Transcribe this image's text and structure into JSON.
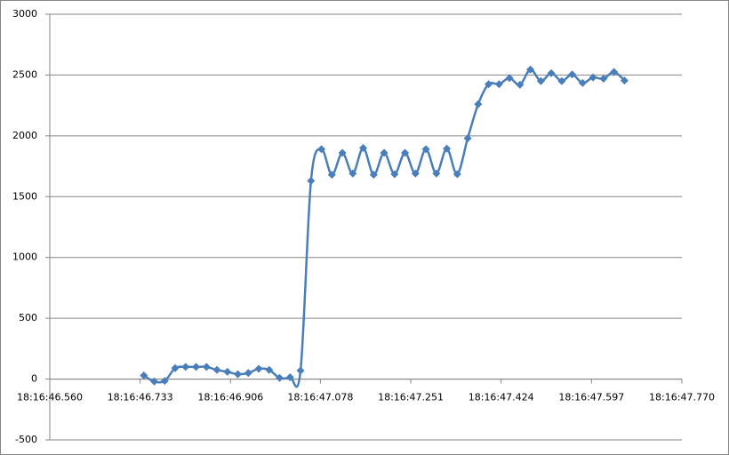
{
  "chart_data": {
    "type": "line",
    "smooth": true,
    "marker": "diamond",
    "x": [
      65806.74,
      65806.76,
      65806.78,
      65806.8,
      65806.82,
      65806.84,
      65806.86,
      65806.88,
      65806.9,
      65806.92,
      65806.94,
      65806.96,
      65806.98,
      65807.0,
      65807.02,
      65807.04,
      65807.06,
      65807.08,
      65807.1,
      65807.12,
      65807.14,
      65807.16,
      65807.18,
      65807.2,
      65807.22,
      65807.24,
      65807.26,
      65807.28,
      65807.3,
      65807.32,
      65807.34,
      65807.36,
      65807.38,
      65807.4,
      65807.42,
      65807.44,
      65807.46,
      65807.48,
      65807.5,
      65807.52,
      65807.54,
      65807.56,
      65807.58,
      65807.6,
      65807.62,
      65807.64,
      65807.66
    ],
    "series": [
      {
        "color": "#4a7ebb",
        "values": [
          30,
          -20,
          -15,
          90,
          100,
          100,
          100,
          75,
          60,
          40,
          50,
          85,
          75,
          10,
          15,
          70,
          1630,
          1890,
          1680,
          1860,
          1690,
          1900,
          1680,
          1860,
          1685,
          1860,
          1690,
          1890,
          1690,
          1895,
          1685,
          1980,
          2260,
          2425,
          2425,
          2475,
          2420,
          2545,
          2450,
          2515,
          2450,
          2505,
          2435,
          2480,
          2470,
          2525,
          2455
        ]
      }
    ],
    "xlim": [
      65806.56,
      65807.77
    ],
    "xticks": [
      {
        "value": 65806.56,
        "label": "18:16:46.560"
      },
      {
        "value": 65806.733,
        "label": "18:16:46.733"
      },
      {
        "value": 65806.906,
        "label": "18:16:46.906"
      },
      {
        "value": 65807.078,
        "label": "18:16:47.078"
      },
      {
        "value": 65807.251,
        "label": "18:16:47.251"
      },
      {
        "value": 65807.424,
        "label": "18:16:47.424"
      },
      {
        "value": 65807.597,
        "label": "18:16:47.597"
      },
      {
        "value": 65807.77,
        "label": "18:16:47.770"
      }
    ],
    "ylim": [
      -500,
      3000
    ],
    "yticks": [
      -500,
      0,
      500,
      1000,
      1500,
      2000,
      2500,
      3000
    ],
    "grid": true
  }
}
